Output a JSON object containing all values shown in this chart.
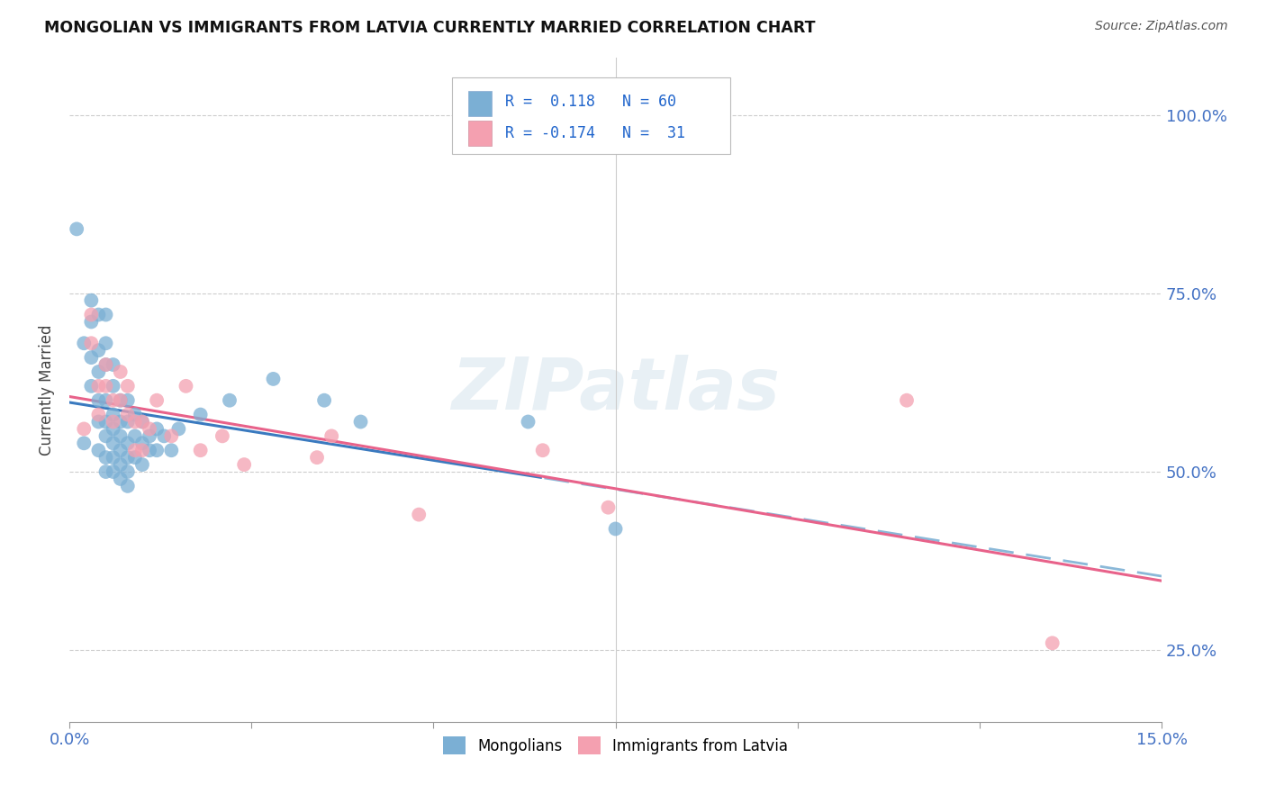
{
  "title": "MONGOLIAN VS IMMIGRANTS FROM LATVIA CURRENTLY MARRIED CORRELATION CHART",
  "source": "Source: ZipAtlas.com",
  "ylabel": "Currently Married",
  "y_tick_labels": [
    "25.0%",
    "50.0%",
    "75.0%",
    "100.0%"
  ],
  "y_tick_values": [
    0.25,
    0.5,
    0.75,
    1.0
  ],
  "x_lim": [
    0.0,
    0.15
  ],
  "y_lim": [
    0.15,
    1.08
  ],
  "legend1_R": "0.118",
  "legend1_N": "60",
  "legend2_R": "-0.174",
  "legend2_N": "31",
  "blue_color": "#7bafd4",
  "pink_color": "#f4a0b0",
  "trend_blue_solid": "#3a7abf",
  "trend_blue_dash": "#8ab8d8",
  "trend_pink": "#e8628a",
  "watermark_text": "ZIPatlas",
  "blue_trend_split_x": 0.065,
  "mongolian_x": [
    0.001,
    0.002,
    0.002,
    0.003,
    0.003,
    0.003,
    0.003,
    0.004,
    0.004,
    0.004,
    0.004,
    0.004,
    0.004,
    0.005,
    0.005,
    0.005,
    0.005,
    0.005,
    0.005,
    0.005,
    0.005,
    0.006,
    0.006,
    0.006,
    0.006,
    0.006,
    0.006,
    0.006,
    0.007,
    0.007,
    0.007,
    0.007,
    0.007,
    0.007,
    0.008,
    0.008,
    0.008,
    0.008,
    0.008,
    0.008,
    0.009,
    0.009,
    0.009,
    0.01,
    0.01,
    0.01,
    0.011,
    0.011,
    0.012,
    0.012,
    0.013,
    0.014,
    0.015,
    0.018,
    0.022,
    0.028,
    0.035,
    0.04,
    0.063,
    0.075
  ],
  "mongolian_y": [
    0.84,
    0.54,
    0.68,
    0.74,
    0.71,
    0.66,
    0.62,
    0.72,
    0.67,
    0.64,
    0.6,
    0.57,
    0.53,
    0.72,
    0.68,
    0.65,
    0.6,
    0.57,
    0.55,
    0.52,
    0.5,
    0.65,
    0.62,
    0.58,
    0.56,
    0.54,
    0.52,
    0.5,
    0.6,
    0.57,
    0.55,
    0.53,
    0.51,
    0.49,
    0.6,
    0.57,
    0.54,
    0.52,
    0.5,
    0.48,
    0.58,
    0.55,
    0.52,
    0.57,
    0.54,
    0.51,
    0.55,
    0.53,
    0.56,
    0.53,
    0.55,
    0.53,
    0.56,
    0.58,
    0.6,
    0.63,
    0.6,
    0.57,
    0.57,
    0.42
  ],
  "latvia_x": [
    0.002,
    0.003,
    0.003,
    0.004,
    0.004,
    0.005,
    0.005,
    0.006,
    0.006,
    0.007,
    0.007,
    0.008,
    0.008,
    0.009,
    0.009,
    0.01,
    0.01,
    0.011,
    0.012,
    0.014,
    0.016,
    0.018,
    0.021,
    0.024,
    0.034,
    0.036,
    0.048,
    0.065,
    0.074,
    0.115,
    0.135
  ],
  "latvia_y": [
    0.56,
    0.72,
    0.68,
    0.62,
    0.58,
    0.65,
    0.62,
    0.6,
    0.57,
    0.64,
    0.6,
    0.62,
    0.58,
    0.57,
    0.53,
    0.57,
    0.53,
    0.56,
    0.6,
    0.55,
    0.62,
    0.53,
    0.55,
    0.51,
    0.52,
    0.55,
    0.44,
    0.53,
    0.45,
    0.6,
    0.26
  ]
}
